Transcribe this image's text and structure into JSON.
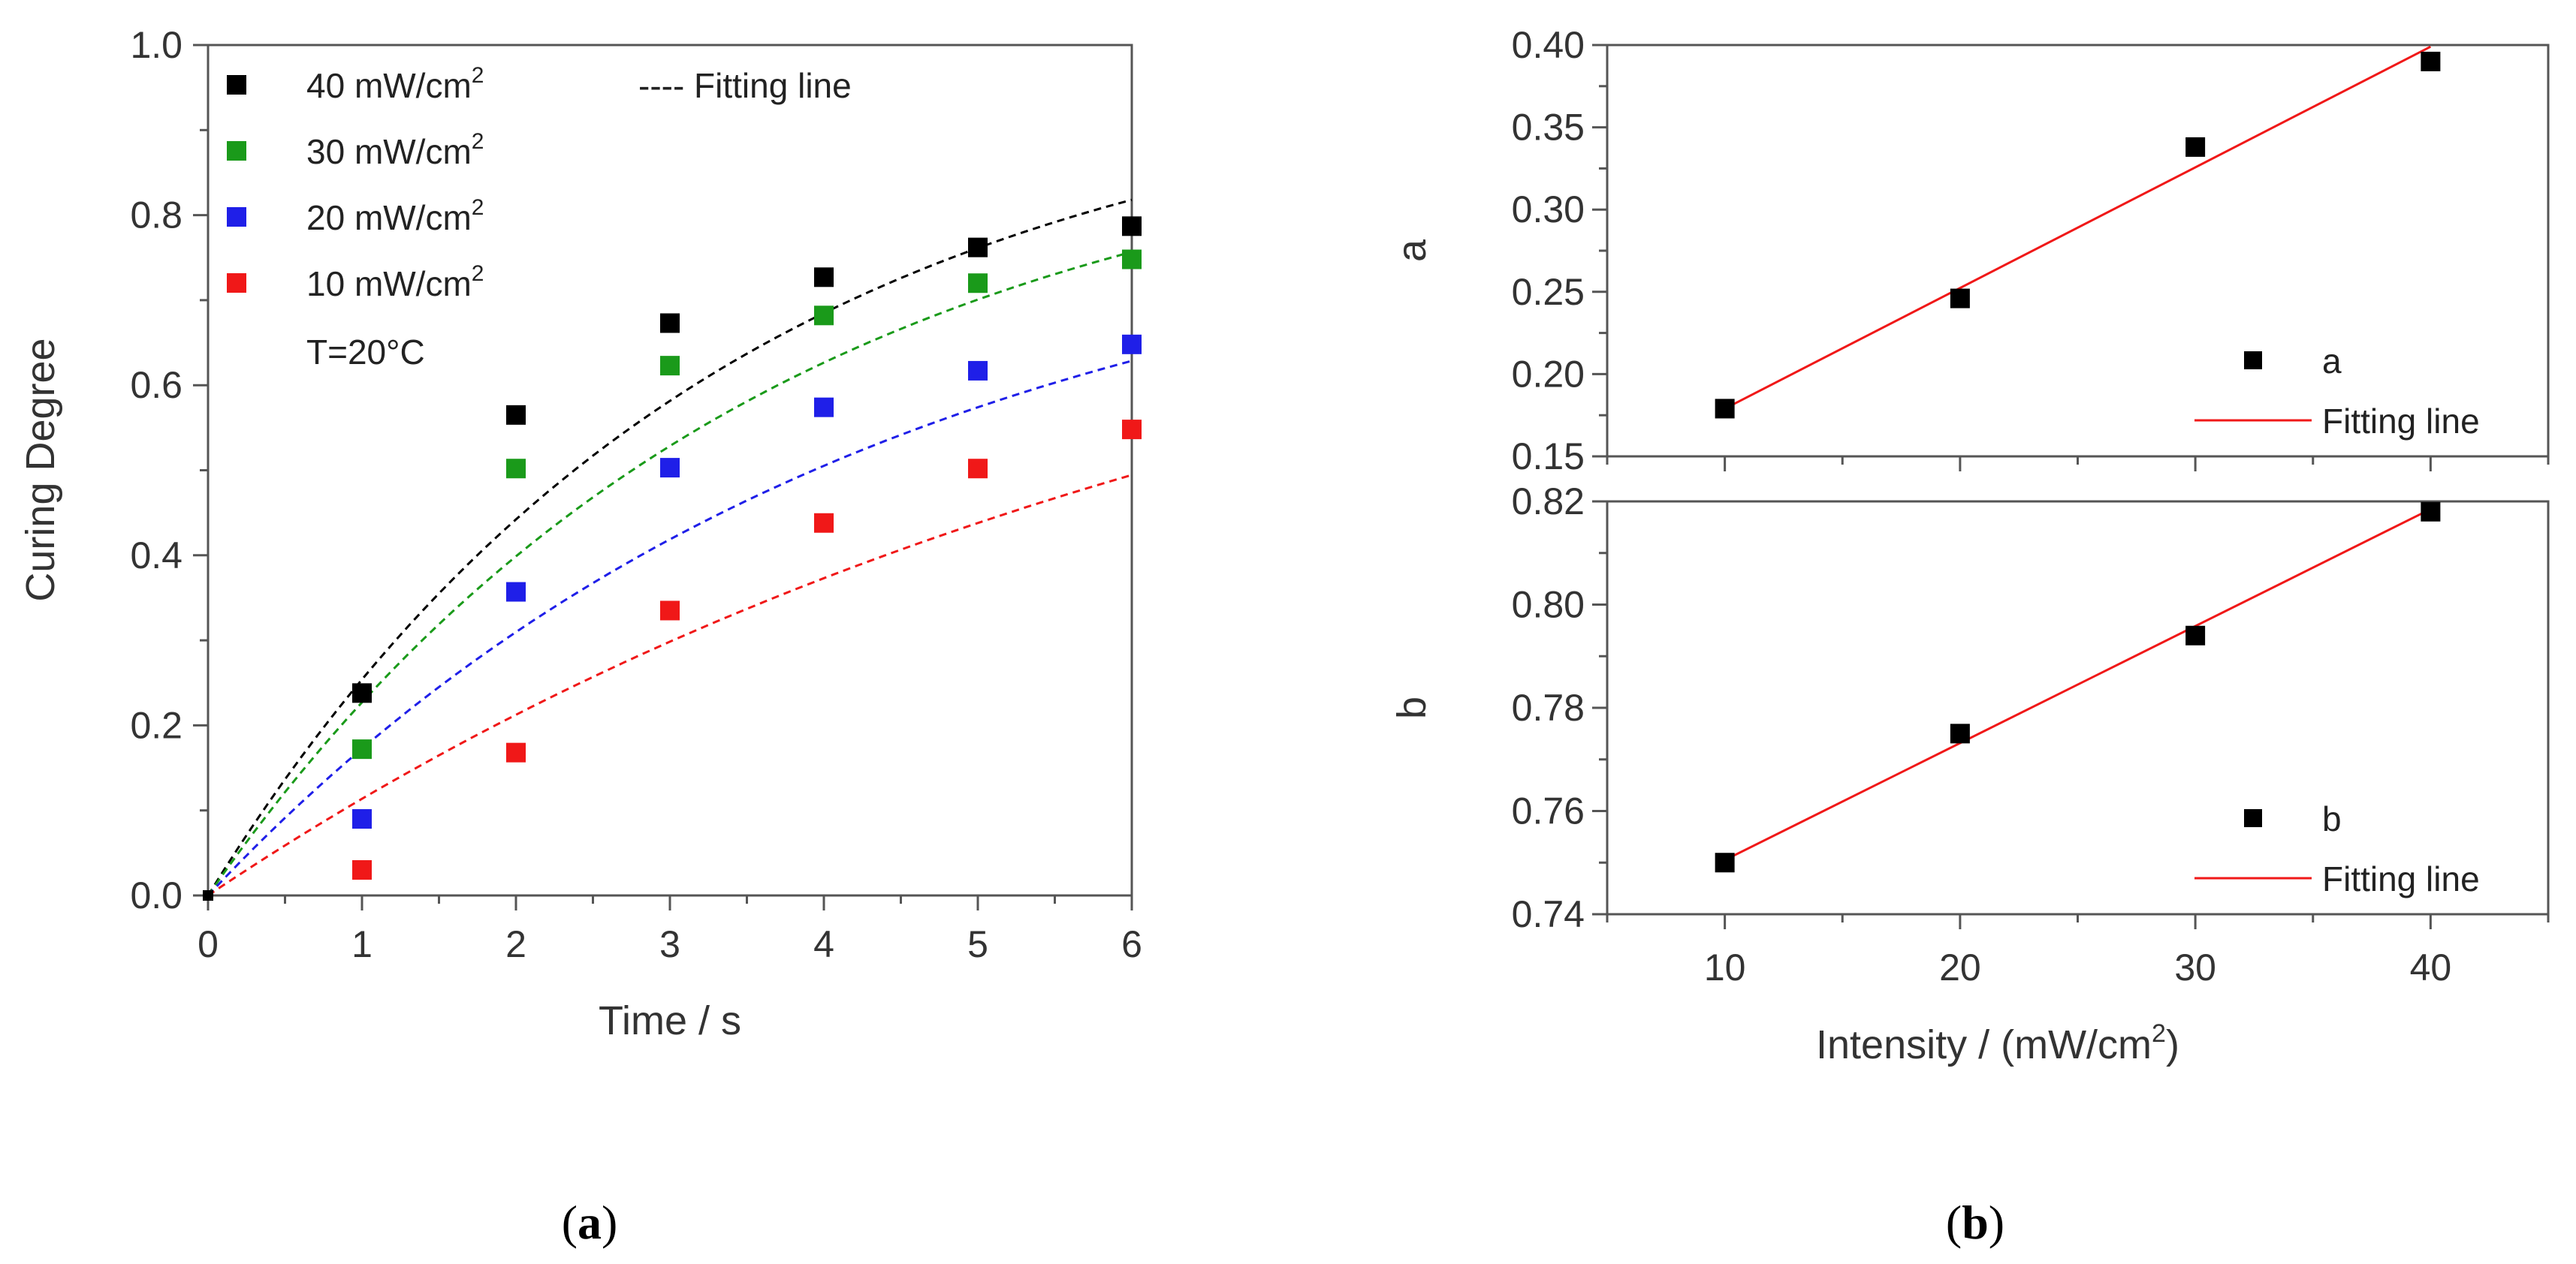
{
  "chart_data": [
    {
      "type": "scatter",
      "caption": "a",
      "xlabel": "Time / s",
      "ylabel": "Curing Degree",
      "xlim": [
        0,
        6
      ],
      "ylim": [
        0,
        1.0
      ],
      "xticks": [
        "0",
        "1",
        "2",
        "3",
        "4",
        "5",
        "6"
      ],
      "yticks": [
        "0.0",
        "0.2",
        "0.4",
        "0.6",
        "0.8",
        "1.0"
      ],
      "annotation": "T=20°C",
      "fit_legend": "---- Fitting line",
      "series": [
        {
          "name": "40 mW/cm",
          "sup": "2",
          "color": "#000000",
          "x": [
            1,
            2,
            3,
            4,
            5,
            6
          ],
          "y": [
            0.238,
            0.565,
            0.673,
            0.727,
            0.762,
            0.787
          ],
          "fit_k": 0.3,
          "fit_a": 0.98
        },
        {
          "name": "30 mW/cm",
          "sup": "2",
          "color": "#1a9a1a",
          "x": [
            1,
            2,
            3,
            4,
            5,
            6
          ],
          "y": [
            0.172,
            0.502,
            0.623,
            0.682,
            0.72,
            0.748
          ],
          "fit_k": 0.28,
          "fit_a": 0.93
        },
        {
          "name": "20 mW/cm",
          "sup": "2",
          "color": "#1f1fe8",
          "x": [
            1,
            2,
            3,
            4,
            5,
            6
          ],
          "y": [
            0.09,
            0.357,
            0.503,
            0.574,
            0.617,
            0.648
          ],
          "fit_k": 0.23,
          "fit_a": 0.84
        },
        {
          "name": "10 mW/cm",
          "sup": "2",
          "color": "#f01818",
          "x": [
            1,
            2,
            3,
            4,
            5,
            6
          ],
          "y": [
            0.03,
            0.168,
            0.335,
            0.438,
            0.502,
            0.548
          ],
          "fit_k": 0.14,
          "fit_a": 0.87
        }
      ]
    },
    {
      "type": "scatter",
      "caption": "b",
      "xlabel": "Intensity / (mW/cm",
      "xlabel_sup": "2",
      "xlabel_tail": ")",
      "xlim": [
        5,
        45
      ],
      "xticks": [
        "10",
        "20",
        "30",
        "40"
      ],
      "panels": [
        {
          "ylabel": "a",
          "ylim": [
            0.15,
            0.4
          ],
          "yticks": [
            "0.15",
            "0.20",
            "0.25",
            "0.30",
            "0.35",
            "0.40"
          ],
          "legend_points": "a",
          "legend_line": "Fitting line",
          "x": [
            10,
            20,
            30,
            40
          ],
          "y": [
            0.179,
            0.246,
            0.338,
            0.39
          ],
          "fit": [
            [
              10,
              0.179
            ],
            [
              40,
              0.399
            ]
          ]
        },
        {
          "ylabel": "b",
          "ylim": [
            0.74,
            0.82
          ],
          "yticks": [
            "0.74",
            "0.76",
            "0.78",
            "0.80",
            "0.82"
          ],
          "legend_points": "b",
          "legend_line": "Fitting line",
          "x": [
            10,
            20,
            30,
            40
          ],
          "y": [
            0.75,
            0.775,
            0.794,
            0.818
          ],
          "fit": [
            [
              10,
              0.7505
            ],
            [
              40,
              0.8185
            ]
          ]
        }
      ]
    }
  ]
}
